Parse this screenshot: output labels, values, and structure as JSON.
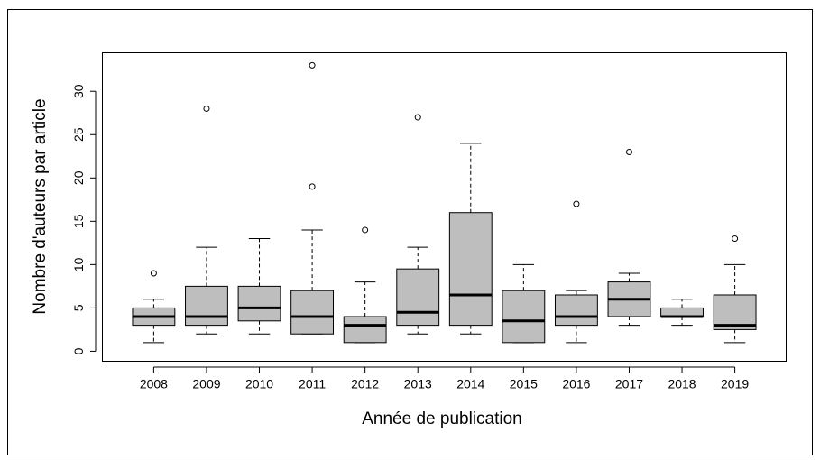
{
  "chart_data": {
    "type": "box",
    "xlabel": "Année de publication",
    "ylabel": "Nombre d'auteurs par article",
    "categories": [
      "2008",
      "2009",
      "2010",
      "2011",
      "2012",
      "2013",
      "2014",
      "2015",
      "2016",
      "2017",
      "2018",
      "2019"
    ],
    "boxes": [
      {
        "whislo": 1,
        "q1": 3,
        "med": 4,
        "q3": 5,
        "whishi": 6,
        "fliers": [
          9
        ]
      },
      {
        "whislo": 2,
        "q1": 3,
        "med": 4,
        "q3": 7.5,
        "whishi": 12,
        "fliers": [
          28
        ]
      },
      {
        "whislo": 2,
        "q1": 3.5,
        "med": 5,
        "q3": 7.5,
        "whishi": 13,
        "fliers": []
      },
      {
        "whislo": 2,
        "q1": 2,
        "med": 4,
        "q3": 7,
        "whishi": 14,
        "fliers": [
          19,
          33
        ]
      },
      {
        "whislo": 1,
        "q1": 1,
        "med": 3,
        "q3": 4,
        "whishi": 8,
        "fliers": [
          14
        ]
      },
      {
        "whislo": 2,
        "q1": 3,
        "med": 4.5,
        "q3": 9.5,
        "whishi": 12,
        "fliers": [
          27
        ]
      },
      {
        "whislo": 2,
        "q1": 3,
        "med": 6.5,
        "q3": 16,
        "whishi": 24,
        "fliers": []
      },
      {
        "whislo": 1,
        "q1": 1,
        "med": 3.5,
        "q3": 7,
        "whishi": 10,
        "fliers": []
      },
      {
        "whislo": 1,
        "q1": 3,
        "med": 4,
        "q3": 6.5,
        "whishi": 7,
        "fliers": [
          17
        ]
      },
      {
        "whislo": 3,
        "q1": 4,
        "med": 6,
        "q3": 8,
        "whishi": 9,
        "fliers": [
          23
        ]
      },
      {
        "whislo": 3,
        "q1": 4,
        "med": 4,
        "q3": 5,
        "whishi": 6,
        "fliers": []
      },
      {
        "whislo": 1,
        "q1": 2.5,
        "med": 3,
        "q3": 6.5,
        "whishi": 10,
        "fliers": [
          13
        ]
      }
    ],
    "color": "#bebebe",
    "ylim": [
      -1.1,
      34.5
    ],
    "yticks": [
      0,
      5,
      10,
      15,
      20,
      25,
      30
    ]
  }
}
